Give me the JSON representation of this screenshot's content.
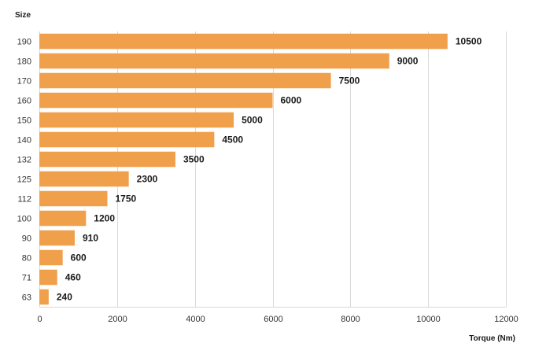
{
  "chart_data": {
    "type": "bar",
    "orientation": "horizontal",
    "ylabel": "Size",
    "xlabel": "Torque (Nm)",
    "categories": [
      "190",
      "180",
      "170",
      "160",
      "150",
      "140",
      "132",
      "125",
      "112",
      "100",
      "90",
      "80",
      "71",
      "63"
    ],
    "values": [
      10500,
      9000,
      7500,
      6000,
      5000,
      4500,
      3500,
      2300,
      1750,
      1200,
      910,
      600,
      460,
      240
    ],
    "xlim": [
      0,
      12000
    ],
    "xticks": [
      0,
      2000,
      4000,
      6000,
      8000,
      10000,
      12000
    ],
    "grid": "vertical",
    "legend": "none",
    "bar_color": "#F0A04B",
    "grid_color": "#D9D9D9"
  }
}
